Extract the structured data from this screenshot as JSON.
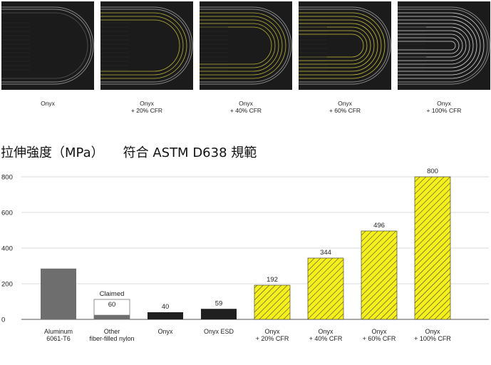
{
  "thumbnails": [
    {
      "line1": "Onyx",
      "line2": "",
      "color": "#bdbdbd"
    },
    {
      "line1": "Onyx",
      "line2": "+ 20% CFR",
      "color": "#b9b33a"
    },
    {
      "line1": "Onyx",
      "line2": "+ 40% CFR",
      "color": "#b9b33a"
    },
    {
      "line1": "Onyx",
      "line2": "+ 60% CFR",
      "color": "#c9c138"
    },
    {
      "line1": "Onyx",
      "line2": "+ 100% CFR",
      "color": "#d8d8d8"
    }
  ],
  "heading": "拉伸強度（MPa）　　符合 ASTM D638 規範",
  "chart_data": {
    "type": "bar",
    "title": "拉伸強度（MPa）　　符合 ASTM D638 規範",
    "categories": [
      [
        "Aluminum",
        "6061-T6"
      ],
      [
        "Other",
        "fiber-filled nylon"
      ],
      [
        "Onyx"
      ],
      [
        "Onyx ESD"
      ],
      [
        "Onyx",
        "+ 20% CFR"
      ],
      [
        "Onyx",
        "+ 40% CFR"
      ],
      [
        "Onyx",
        "+ 60% CFR"
      ],
      [
        "Onyx",
        "+ 100% CFR"
      ]
    ],
    "values": [
      285,
      60,
      40,
      59,
      192,
      344,
      496,
      800
    ],
    "value_labels": [
      "",
      "60",
      "40",
      "59",
      "192",
      "344",
      "496",
      "800"
    ],
    "claimed_label": "Claimed",
    "styles": [
      "gray",
      "claimed",
      "black",
      "black",
      "hatch",
      "hatch",
      "hatch",
      "hatch"
    ],
    "yticks": [
      0,
      200,
      400,
      600,
      800
    ],
    "ylim": [
      0,
      800
    ],
    "grid": true,
    "colors": {
      "gray": "#6e6e6e",
      "black": "#1f1f1f",
      "hatch_fill": "#f5ef1b",
      "hatch_line": "#222222",
      "grid": "#cfcfcf"
    }
  }
}
